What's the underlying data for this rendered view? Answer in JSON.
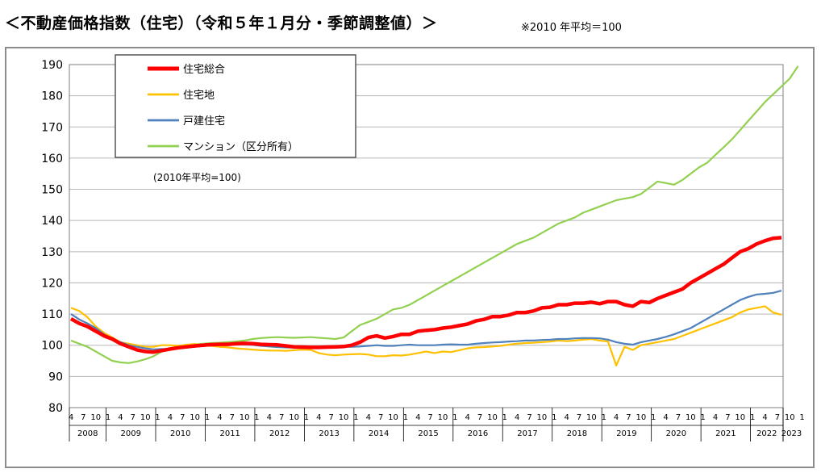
{
  "title": "＜不動産価格指数（住宅）（令和５年１月分・季節調整値）＞",
  "note": "※2010 年平均＝100",
  "chart_data": {
    "type": "line",
    "ylim": [
      80,
      190
    ],
    "yticks": [
      80,
      90,
      100,
      110,
      120,
      130,
      140,
      150,
      160,
      170,
      180,
      190
    ],
    "month_labels": [
      "4",
      "7",
      "10",
      "1"
    ],
    "years": [
      "2008",
      "2009",
      "2010",
      "2011",
      "2012",
      "2013",
      "2014",
      "2015",
      "2016",
      "2017",
      "2018",
      "2019",
      "2020",
      "2021",
      "2022",
      "2023"
    ],
    "x_start": "2008-04",
    "x_end": "2023-01",
    "grid": true,
    "legend_position": "top-left",
    "basis_note": "(2010年平均=100)",
    "series": [
      {
        "name": "住宅総合",
        "color": "#ff0000",
        "values": [
          108.5,
          107,
          106,
          104.5,
          103,
          102,
          100.5,
          99.5,
          98.5,
          98,
          97.8,
          98.3,
          98.8,
          99.2,
          99.5,
          99.8,
          100,
          100.2,
          100.3,
          100.3,
          100.5,
          100.6,
          100.5,
          100.3,
          100.2,
          100.1,
          99.8,
          99.5,
          99.4,
          99.3,
          99.3,
          99.4,
          99.5,
          99.6,
          100,
          101,
          102.5,
          103,
          102.3,
          102.8,
          103.5,
          103.5,
          104.5,
          104.8,
          105,
          105.5,
          105.8,
          106.3,
          106.8,
          107.8,
          108.3,
          109.2,
          109.2,
          109.7,
          110.5,
          110.5,
          111,
          112,
          112.2,
          113,
          113,
          113.5,
          113.5,
          113.8,
          113.3,
          114,
          114,
          113,
          112.5,
          114,
          113.7,
          115,
          116,
          117,
          118,
          120,
          121.5,
          123,
          124.5,
          126,
          128,
          130,
          131,
          132.5,
          133.5,
          134.3,
          134.5
        ]
      },
      {
        "name": "住宅地",
        "color": "#ffc000",
        "values": [
          112,
          111,
          109,
          106,
          104,
          102.5,
          101,
          100.5,
          100,
          99.5,
          99.5,
          100,
          100,
          99.8,
          100.2,
          100.4,
          100,
          99.8,
          99.5,
          99.3,
          99,
          98.8,
          98.6,
          98.4,
          98.3,
          98.3,
          98.2,
          98.4,
          98.6,
          98.5,
          97.5,
          97,
          96.8,
          97,
          97.1,
          97.2,
          97,
          96.5,
          96.5,
          96.8,
          96.7,
          97,
          97.5,
          98,
          97.5,
          98,
          97.8,
          98.4,
          99,
          99.3,
          99.4,
          99.6,
          99.8,
          100.2,
          100.5,
          100.7,
          100.8,
          101,
          101.2,
          101.5,
          101.3,
          101.5,
          101.8,
          102,
          101.5,
          101.2,
          93.5,
          99.5,
          98.5,
          100,
          100.5,
          101,
          101.5,
          102,
          103,
          104,
          105,
          106,
          107,
          108,
          109,
          110.5,
          111.5,
          112,
          112.5,
          110.5,
          109.8
        ]
      },
      {
        "name": "戸建住宅",
        "color": "#4f81bd",
        "values": [
          110,
          108.3,
          107,
          105.5,
          103.5,
          102,
          101,
          100,
          99.5,
          99,
          98.7,
          98.8,
          98.8,
          99,
          99.2,
          99.5,
          99.8,
          100,
          100.2,
          100.2,
          100.3,
          100.3,
          100.1,
          99.8,
          99.6,
          99.4,
          99.3,
          99.2,
          99.1,
          99.2,
          99.3,
          99.3,
          99.4,
          99.5,
          99.5,
          99.6,
          99.8,
          100,
          99.8,
          99.8,
          100,
          100.2,
          100,
          100,
          100,
          100.2,
          100.3,
          100.2,
          100.2,
          100.5,
          100.7,
          100.9,
          101,
          101.2,
          101.3,
          101.5,
          101.5,
          101.7,
          101.8,
          102,
          102,
          102.2,
          102.3,
          102.3,
          102.2,
          101.8,
          101,
          100.5,
          100.2,
          101,
          101.5,
          102,
          102.7,
          103.5,
          104.5,
          105.5,
          107,
          108.5,
          110,
          111.5,
          113,
          114.5,
          115.5,
          116.3,
          116.5,
          116.8,
          117.5
        ]
      },
      {
        "name": "マンション（区分所有）",
        "color": "#92d050",
        "values": [
          101.5,
          100.5,
          99.5,
          98,
          96.5,
          95,
          94.5,
          94.3,
          94.8,
          95.5,
          96.5,
          98,
          99,
          99.5,
          100,
          100.3,
          100.5,
          100.7,
          100.8,
          101,
          101.2,
          101.5,
          102,
          102.3,
          102.5,
          102.6,
          102.5,
          102.4,
          102.5,
          102.6,
          102.4,
          102.2,
          102,
          102.5,
          104.5,
          106.5,
          107.5,
          108.5,
          110,
          111.5,
          112,
          113,
          114.5,
          116,
          117.5,
          119,
          120.5,
          122,
          123.5,
          125,
          126.5,
          128,
          129.5,
          131,
          132.5,
          133.5,
          134.5,
          136,
          137.5,
          139,
          140,
          141,
          142.5,
          143.5,
          144.5,
          145.5,
          146.5,
          147,
          147.5,
          148.5,
          150.5,
          152.5,
          152,
          151.5,
          153,
          155,
          157,
          158.5,
          161,
          163.5,
          166,
          169,
          172,
          175,
          178,
          180.5,
          183,
          185.5,
          189.5
        ]
      }
    ]
  }
}
